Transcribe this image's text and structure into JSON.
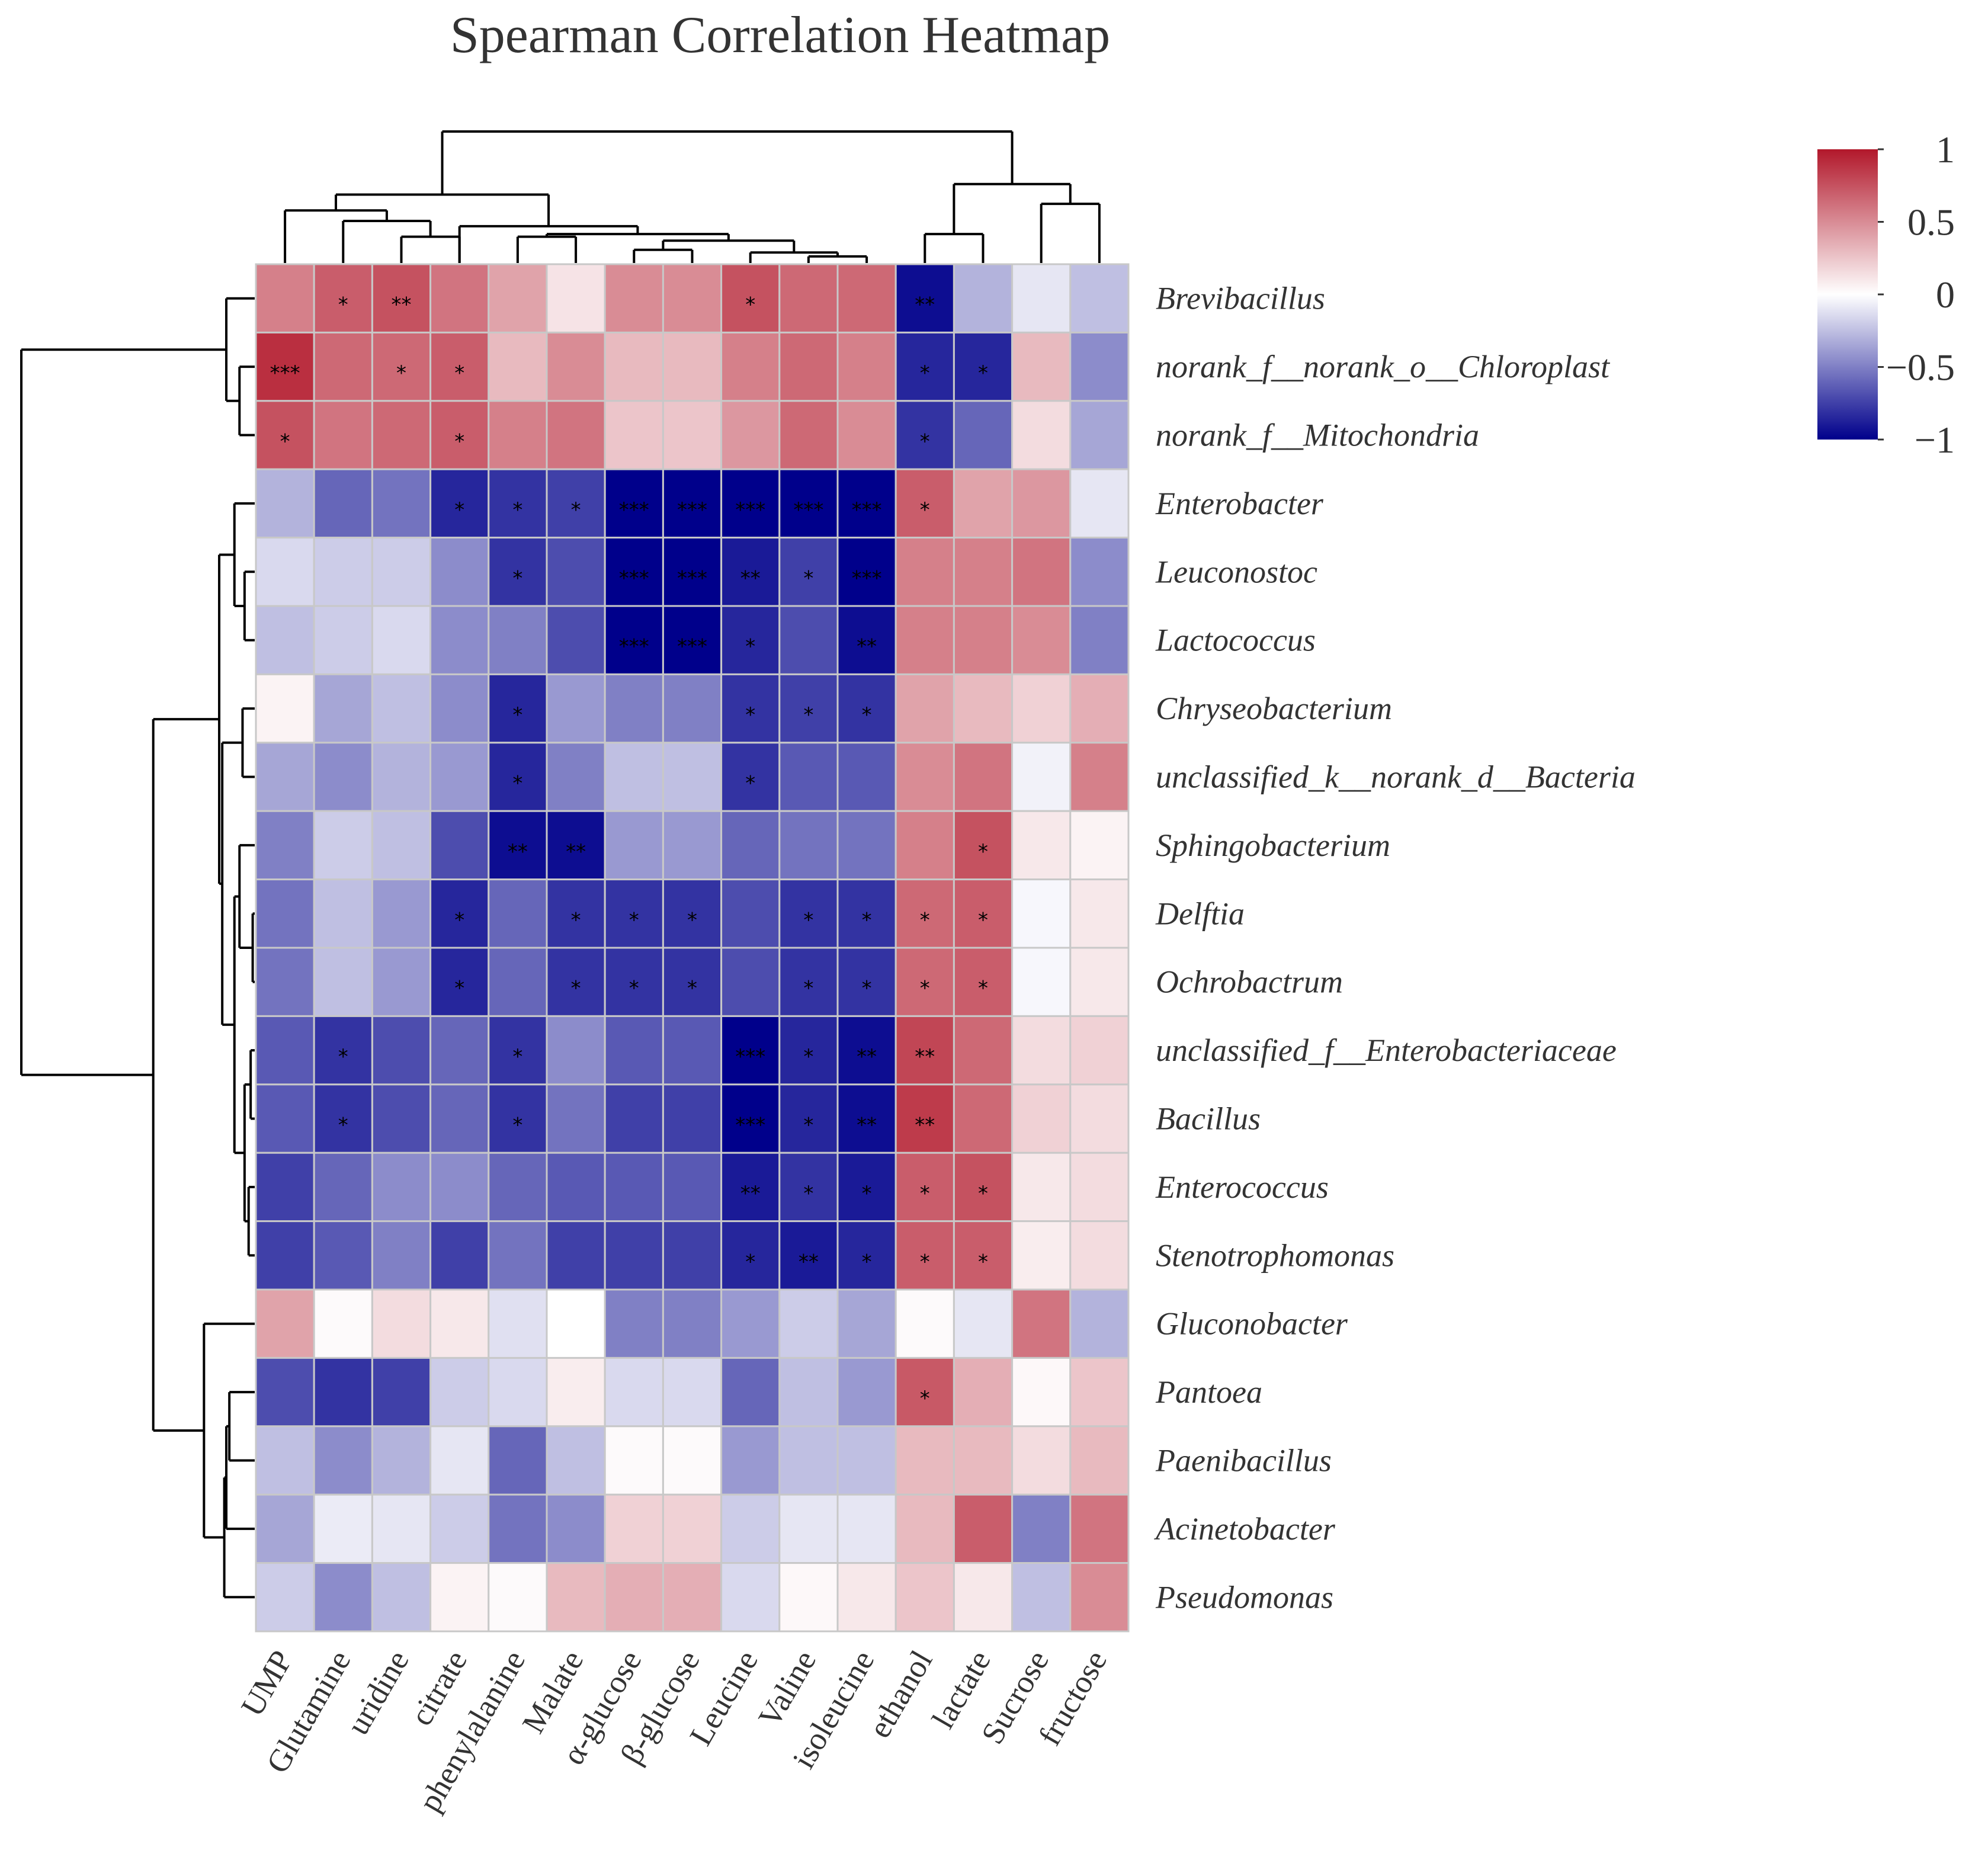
{
  "chart_data": {
    "type": "heatmap",
    "title": "Spearman Correlation Heatmap",
    "columns": [
      "UMP",
      "Glutamine",
      "uridine",
      "citrate",
      "phenylalanine",
      "Malate",
      "α-glucose",
      "β-glucose",
      "Leucine",
      "Valine",
      "isoleucine",
      "ethanol",
      "lactate",
      "Sucrose",
      "fructose"
    ],
    "rows": [
      "Brevibacillus",
      "norank_f__norank_o__Chloroplast",
      "norank_f__Mitochondria",
      "Enterobacter",
      "Leuconostoc",
      "Lactococcus",
      "Chryseobacterium",
      "unclassified_k__norank_d__Bacteria",
      "Sphingobacterium",
      "Delftia",
      "Ochrobactrum",
      "unclassified_f__Enterobacteriaceae",
      "Bacillus",
      "Enterococcus",
      "Stenotrophomonas",
      "Gluconobacter",
      "Pantoea",
      "Paenibacillus",
      "Acinetobacter",
      "Pseudomonas"
    ],
    "values": [
      [
        0.55,
        0.7,
        0.75,
        0.6,
        0.4,
        0.12,
        0.5,
        0.5,
        0.75,
        0.65,
        0.65,
        -0.95,
        -0.3,
        -0.1,
        -0.25
      ],
      [
        0.9,
        0.65,
        0.65,
        0.7,
        0.3,
        0.5,
        0.3,
        0.3,
        0.55,
        0.65,
        0.55,
        -0.85,
        -0.85,
        0.3,
        -0.45
      ],
      [
        0.75,
        0.6,
        0.65,
        0.7,
        0.55,
        0.6,
        0.25,
        0.25,
        0.45,
        0.65,
        0.5,
        -0.8,
        -0.6,
        0.15,
        -0.35
      ],
      [
        -0.3,
        -0.6,
        -0.55,
        -0.85,
        -0.8,
        -0.75,
        -1.0,
        -1.0,
        -1.0,
        -1.0,
        -1.0,
        0.7,
        0.4,
        0.45,
        -0.1
      ],
      [
        -0.15,
        -0.2,
        -0.2,
        -0.45,
        -0.8,
        -0.7,
        -1.0,
        -1.0,
        -0.9,
        -0.75,
        -1.0,
        0.55,
        0.55,
        0.6,
        -0.45
      ],
      [
        -0.25,
        -0.2,
        -0.15,
        -0.45,
        -0.5,
        -0.7,
        -1.0,
        -1.0,
        -0.85,
        -0.7,
        -0.95,
        0.55,
        0.55,
        0.5,
        -0.5
      ],
      [
        0.05,
        -0.35,
        -0.25,
        -0.45,
        -0.85,
        -0.4,
        -0.5,
        -0.5,
        -0.8,
        -0.75,
        -0.8,
        0.4,
        0.3,
        0.2,
        0.35
      ],
      [
        -0.35,
        -0.45,
        -0.3,
        -0.4,
        -0.85,
        -0.5,
        -0.25,
        -0.25,
        -0.8,
        -0.65,
        -0.65,
        0.5,
        0.6,
        -0.05,
        0.55
      ],
      [
        -0.5,
        -0.2,
        -0.25,
        -0.7,
        -0.95,
        -0.95,
        -0.4,
        -0.4,
        -0.6,
        -0.55,
        -0.55,
        0.55,
        0.75,
        0.1,
        0.05
      ],
      [
        -0.55,
        -0.25,
        -0.4,
        -0.85,
        -0.6,
        -0.8,
        -0.8,
        -0.8,
        -0.7,
        -0.8,
        -0.8,
        0.65,
        0.7,
        -0.03,
        0.1
      ],
      [
        -0.55,
        -0.25,
        -0.4,
        -0.85,
        -0.6,
        -0.8,
        -0.8,
        -0.8,
        -0.7,
        -0.8,
        -0.8,
        0.65,
        0.7,
        -0.03,
        0.1
      ],
      [
        -0.65,
        -0.8,
        -0.7,
        -0.6,
        -0.8,
        -0.45,
        -0.65,
        -0.65,
        -1.0,
        -0.85,
        -0.95,
        0.8,
        0.65,
        0.15,
        0.2
      ],
      [
        -0.65,
        -0.8,
        -0.7,
        -0.6,
        -0.8,
        -0.55,
        -0.75,
        -0.75,
        -1.0,
        -0.85,
        -0.95,
        0.85,
        0.65,
        0.2,
        0.15
      ],
      [
        -0.75,
        -0.6,
        -0.45,
        -0.45,
        -0.6,
        -0.65,
        -0.65,
        -0.65,
        -0.9,
        -0.8,
        -0.9,
        0.7,
        0.75,
        0.1,
        0.15
      ],
      [
        -0.75,
        -0.65,
        -0.5,
        -0.75,
        -0.55,
        -0.75,
        -0.75,
        -0.75,
        -0.85,
        -0.9,
        -0.85,
        0.7,
        0.7,
        0.08,
        0.15
      ],
      [
        0.4,
        0.02,
        0.15,
        0.1,
        -0.12,
        0.0,
        -0.5,
        -0.5,
        -0.4,
        -0.2,
        -0.35,
        0.02,
        -0.1,
        0.6,
        -0.3
      ],
      [
        -0.7,
        -0.8,
        -0.75,
        -0.2,
        -0.15,
        0.08,
        -0.15,
        -0.15,
        -0.6,
        -0.25,
        -0.4,
        0.72,
        0.35,
        0.03,
        0.25
      ],
      [
        -0.25,
        -0.45,
        -0.3,
        -0.1,
        -0.6,
        -0.25,
        0.02,
        0.02,
        -0.4,
        -0.25,
        -0.25,
        0.3,
        0.3,
        0.15,
        0.3
      ],
      [
        -0.35,
        -0.08,
        -0.1,
        -0.2,
        -0.55,
        -0.45,
        0.2,
        0.2,
        -0.2,
        -0.1,
        -0.1,
        0.3,
        0.7,
        -0.5,
        0.6
      ],
      [
        -0.2,
        -0.45,
        -0.25,
        0.05,
        0.02,
        0.3,
        0.35,
        0.35,
        -0.15,
        0.03,
        0.1,
        0.25,
        0.1,
        -0.25,
        0.5
      ]
    ],
    "significance": [
      [
        "",
        "*",
        "**",
        "",
        "",
        "",
        "",
        "",
        "*",
        "",
        "",
        "**",
        "",
        "",
        ""
      ],
      [
        "***",
        "",
        "*",
        "*",
        "",
        "",
        "",
        "",
        "",
        "",
        "",
        "*",
        "*",
        "",
        ""
      ],
      [
        "*",
        "",
        "",
        "*",
        "",
        "",
        "",
        "",
        "",
        "",
        "",
        "*",
        "",
        "",
        ""
      ],
      [
        "",
        "",
        "",
        "*",
        "*",
        "*",
        "***",
        "***",
        "***",
        "***",
        "***",
        "*",
        "",
        "",
        ""
      ],
      [
        "",
        "",
        "",
        "",
        "*",
        "",
        "***",
        "***",
        "**",
        "*",
        "***",
        "",
        "",
        "",
        ""
      ],
      [
        "",
        "",
        "",
        "",
        "",
        "",
        "***",
        "***",
        "*",
        "",
        "**",
        "",
        "",
        "",
        ""
      ],
      [
        "",
        "",
        "",
        "",
        "*",
        "",
        "",
        "",
        "*",
        "*",
        "*",
        "",
        "",
        "",
        ""
      ],
      [
        "",
        "",
        "",
        "",
        "*",
        "",
        "",
        "",
        "*",
        "",
        "",
        "",
        "",
        "",
        ""
      ],
      [
        "",
        "",
        "",
        "",
        "**",
        "**",
        "",
        "",
        "",
        "",
        "",
        "",
        "*",
        "",
        ""
      ],
      [
        "",
        "",
        "",
        "*",
        "",
        "*",
        "*",
        "*",
        "",
        "*",
        "*",
        "*",
        "*",
        "",
        ""
      ],
      [
        "",
        "",
        "",
        "*",
        "",
        "*",
        "*",
        "*",
        "",
        "*",
        "*",
        "*",
        "*",
        "",
        ""
      ],
      [
        "",
        "*",
        "",
        "",
        "*",
        "",
        "",
        "",
        "***",
        "*",
        "**",
        "**",
        "",
        "",
        ""
      ],
      [
        "",
        "*",
        "",
        "",
        "*",
        "",
        "",
        "",
        "***",
        "*",
        "**",
        "**",
        "",
        "",
        ""
      ],
      [
        "",
        "",
        "",
        "",
        "",
        "",
        "",
        "",
        "**",
        "*",
        "*",
        "*",
        "*",
        "",
        ""
      ],
      [
        "",
        "",
        "",
        "",
        "",
        "",
        "",
        "",
        "*",
        "**",
        "*",
        "*",
        "*",
        "",
        ""
      ],
      [
        "",
        "",
        "",
        "",
        "",
        "",
        "",
        "",
        "",
        "",
        "",
        "",
        "",
        "",
        ""
      ],
      [
        "",
        "",
        "",
        "",
        "",
        "",
        "",
        "",
        "",
        "",
        "",
        "*",
        "",
        "",
        ""
      ],
      [
        "",
        "",
        "",
        "",
        "",
        "",
        "",
        "",
        "",
        "",
        "",
        "",
        "",
        "",
        ""
      ],
      [
        "",
        "",
        "",
        "",
        "",
        "",
        "",
        "",
        "",
        "",
        "",
        "",
        "",
        "",
        ""
      ],
      [
        "",
        "",
        "",
        "",
        "",
        "",
        "",
        "",
        "",
        "",
        "",
        "",
        "",
        "",
        ""
      ]
    ],
    "colorbar": {
      "min": -1,
      "max": 1,
      "ticks": [
        "1",
        "0.5",
        "0",
        "−0.5",
        "−1"
      ],
      "tick_values": [
        1,
        0.5,
        0,
        -0.5,
        -1
      ]
    },
    "colors": {
      "low": "#00008b",
      "mid": "#ffffff",
      "high": "#b2182b",
      "grid": "#c8c8c8"
    },
    "col_dendrogram_merges": [
      [
        2,
        3,
        0.2
      ],
      [
        1,
        -1,
        0.32
      ],
      [
        0,
        -2,
        0.4
      ],
      [
        9,
        10,
        0.05
      ],
      [
        8,
        -4,
        0.08
      ],
      [
        6,
        7,
        0.1
      ],
      [
        -6,
        -5,
        0.17
      ],
      [
        4,
        5,
        0.2
      ],
      [
        -8,
        -7,
        0.22
      ],
      [
        3,
        -9,
        0.28
      ],
      [
        -3,
        -10,
        0.52
      ],
      [
        13,
        14,
        0.45
      ],
      [
        11,
        12,
        0.22
      ],
      [
        -13,
        -12,
        0.6
      ],
      [
        -11,
        -14,
        1.0
      ]
    ],
    "row_dendrogram_merges": [
      [
        1,
        2,
        0.15
      ],
      [
        0,
        -1,
        0.28
      ],
      [
        4,
        5,
        0.1
      ],
      [
        3,
        -3,
        0.2
      ],
      [
        6,
        7,
        0.12
      ],
      [
        9,
        10,
        0.02
      ],
      [
        11,
        12,
        0.04
      ],
      [
        13,
        14,
        0.06
      ],
      [
        -7,
        -8,
        0.1
      ],
      [
        8,
        -6,
        0.15
      ],
      [
        -9,
        -10,
        0.2
      ],
      [
        -5,
        -11,
        0.32
      ],
      [
        -4,
        -12,
        0.35
      ],
      [
        16,
        17,
        0.25
      ],
      [
        -14,
        18,
        0.28
      ],
      [
        19,
        -15,
        0.3
      ],
      [
        15,
        -16,
        0.5
      ],
      [
        -13,
        -17,
        1.0
      ],
      [
        -2,
        -18,
        2.3
      ]
    ]
  }
}
